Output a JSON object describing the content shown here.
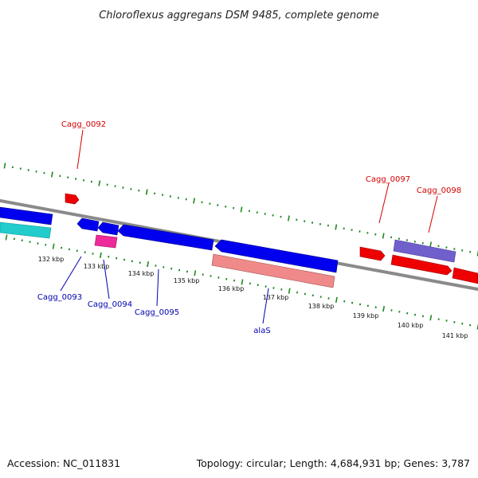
{
  "title": "Chloroflexus aggregans DSM 9485, complete genome",
  "accession": "Accession: NC_011831",
  "summary": "Topology: circular; Length: 4,684,931 bp; Genes: 3,787",
  "colors": {
    "backbone": "#8a8a8a",
    "tick": "#1f8a1f",
    "forward_gene": "#ee0000",
    "reverse_gene": "#0000ee",
    "rna_cyan": "#22cccc",
    "pink": "#ee2a9a",
    "salmon": "#f08a8a",
    "purple": "#7060cc",
    "label_forward": "#d40000",
    "label_reverse": "#0000b0"
  },
  "scale_labels": [
    "132 kbp",
    "133 kbp",
    "134 kbp",
    "135 kbp",
    "136 kbp",
    "137 kbp",
    "138 kbp",
    "139 kbp",
    "140 kbp",
    "141 kbp"
  ],
  "gene_labels": {
    "forward": [
      "Cagg_0092",
      "Cagg_0097",
      "Cagg_0098"
    ],
    "reverse": [
      "Cagg_0093",
      "Cagg_0094",
      "Cagg_0095",
      "alaS"
    ]
  }
}
